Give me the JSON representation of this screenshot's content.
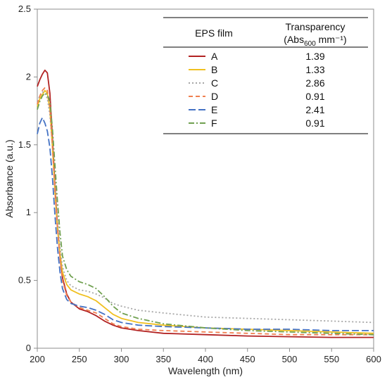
{
  "chart_data": {
    "type": "line",
    "title": "",
    "xlabel": "Wavelength (nm)",
    "ylabel": "Absorbance (a.u.)",
    "xlim": [
      200,
      600
    ],
    "ylim": [
      0,
      2.5
    ],
    "xticks": [
      200,
      250,
      300,
      350,
      400,
      450,
      500,
      550,
      600
    ],
    "yticks": [
      0,
      0.5,
      1,
      1.5,
      2,
      2.5
    ],
    "ytick_labels": [
      "0",
      "0.5",
      "1",
      "1.5",
      "2",
      "2.5"
    ],
    "grid": false,
    "legend_position": "top-right",
    "legend_header": {
      "col1": "EPS film",
      "col2_line1": "Transparency",
      "col2_abs": "Abs",
      "col2_sub": "600",
      "col2_unit": " mm⁻¹)",
      "col2_open": "("
    },
    "series": [
      {
        "name": "A",
        "transparency": "1.39",
        "color": "#b22222",
        "dash": "solid",
        "x": [
          200,
          203,
          206,
          209,
          212,
          215,
          218,
          221,
          224,
          227,
          230,
          235,
          240,
          250,
          260,
          270,
          280,
          290,
          300,
          320,
          350,
          400,
          450,
          500,
          550,
          600
        ],
        "y": [
          1.93,
          1.98,
          2.02,
          2.05,
          2.03,
          1.88,
          1.55,
          1.2,
          0.9,
          0.68,
          0.52,
          0.4,
          0.34,
          0.29,
          0.27,
          0.24,
          0.2,
          0.17,
          0.15,
          0.13,
          0.11,
          0.1,
          0.09,
          0.085,
          0.08,
          0.08
        ]
      },
      {
        "name": "B",
        "transparency": "1.33",
        "color": "#f0c020",
        "dash": "solid",
        "x": [
          200,
          203,
          206,
          209,
          212,
          215,
          218,
          221,
          224,
          227,
          230,
          235,
          240,
          250,
          260,
          270,
          280,
          290,
          300,
          320,
          350,
          400,
          450,
          500,
          550,
          600
        ],
        "y": [
          1.78,
          1.84,
          1.87,
          1.9,
          1.88,
          1.76,
          1.48,
          1.15,
          0.88,
          0.7,
          0.56,
          0.47,
          0.43,
          0.4,
          0.38,
          0.35,
          0.3,
          0.25,
          0.22,
          0.19,
          0.17,
          0.15,
          0.14,
          0.13,
          0.12,
          0.11
        ]
      },
      {
        "name": "C",
        "transparency": "2.86",
        "color": "#a6a6a6",
        "dash": "2,3",
        "x": [
          200,
          203,
          206,
          209,
          212,
          215,
          218,
          221,
          224,
          227,
          230,
          235,
          240,
          250,
          260,
          270,
          280,
          290,
          300,
          320,
          350,
          400,
          450,
          500,
          550,
          600
        ],
        "y": [
          1.82,
          1.86,
          1.89,
          1.88,
          1.84,
          1.72,
          1.5,
          1.2,
          0.95,
          0.75,
          0.6,
          0.5,
          0.46,
          0.43,
          0.42,
          0.4,
          0.37,
          0.33,
          0.31,
          0.28,
          0.26,
          0.23,
          0.22,
          0.21,
          0.2,
          0.19
        ]
      },
      {
        "name": "D",
        "transparency": "0.91",
        "color": "#f08050",
        "dash": "6,4",
        "x": [
          200,
          203,
          206,
          209,
          212,
          215,
          218,
          221,
          224,
          227,
          230,
          235,
          240,
          250,
          260,
          270,
          280,
          290,
          300,
          320,
          350,
          400,
          450,
          500,
          550,
          600
        ],
        "y": [
          1.8,
          1.86,
          1.9,
          1.92,
          1.9,
          1.78,
          1.5,
          1.16,
          0.88,
          0.66,
          0.5,
          0.39,
          0.34,
          0.3,
          0.28,
          0.26,
          0.22,
          0.18,
          0.16,
          0.14,
          0.13,
          0.12,
          0.11,
          0.1,
          0.1,
          0.1
        ]
      },
      {
        "name": "E",
        "transparency": "2.41",
        "color": "#4472c4",
        "dash": "10,4",
        "x": [
          200,
          203,
          206,
          209,
          212,
          215,
          218,
          221,
          224,
          227,
          230,
          235,
          240,
          250,
          260,
          270,
          280,
          290,
          300,
          320,
          350,
          400,
          450,
          500,
          550,
          600
        ],
        "y": [
          1.58,
          1.66,
          1.7,
          1.66,
          1.6,
          1.48,
          1.26,
          0.98,
          0.74,
          0.56,
          0.44,
          0.36,
          0.33,
          0.31,
          0.3,
          0.28,
          0.25,
          0.21,
          0.19,
          0.17,
          0.16,
          0.15,
          0.14,
          0.14,
          0.13,
          0.13
        ]
      },
      {
        "name": "F",
        "transparency": "0.91",
        "color": "#70a050",
        "dash": "8,3,2,3",
        "x": [
          200,
          203,
          206,
          209,
          212,
          215,
          218,
          221,
          224,
          227,
          230,
          235,
          240,
          250,
          260,
          270,
          280,
          290,
          300,
          320,
          350,
          400,
          450,
          500,
          550,
          600
        ],
        "y": [
          1.76,
          1.82,
          1.86,
          1.88,
          1.87,
          1.82,
          1.62,
          1.35,
          1.08,
          0.85,
          0.68,
          0.58,
          0.53,
          0.49,
          0.47,
          0.44,
          0.38,
          0.31,
          0.26,
          0.22,
          0.18,
          0.15,
          0.13,
          0.12,
          0.11,
          0.1
        ]
      }
    ]
  }
}
